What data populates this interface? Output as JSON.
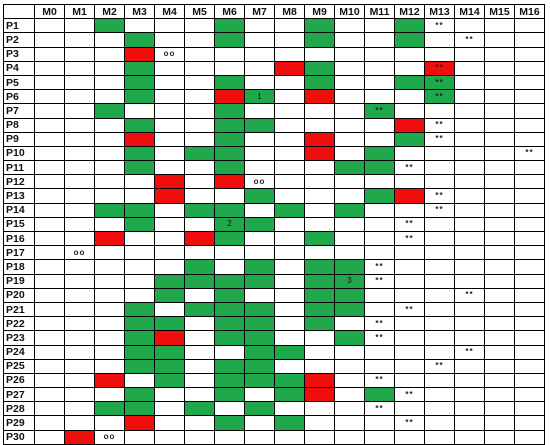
{
  "machines": [
    "M0",
    "M1",
    "M2",
    "M3",
    "M4",
    "M5",
    "M6",
    "M7",
    "M8",
    "M9",
    "M10",
    "M11",
    "M12",
    "M13",
    "M14",
    "M15",
    "M16"
  ],
  "colors": {
    "green": "#1fa84c",
    "red": "#f20d0d",
    "white": "#ffffff"
  },
  "rows": [
    {
      "label": "P1",
      "cells": [
        "",
        "",
        "G",
        "",
        "",
        "",
        "G",
        "",
        "",
        "G",
        "",
        "",
        "G",
        "W:**",
        "",
        "",
        ""
      ]
    },
    {
      "label": "P2",
      "cells": [
        "",
        "",
        "",
        "G",
        "",
        "",
        "G",
        "",
        "",
        "G",
        "",
        "",
        "G",
        "",
        "W:**",
        "",
        ""
      ]
    },
    {
      "label": "P3",
      "cells": [
        "",
        "",
        "",
        "R",
        "W:oo",
        "",
        "",
        "",
        "",
        "",
        "",
        "",
        "",
        "",
        "",
        "",
        ""
      ]
    },
    {
      "label": "P4",
      "cells": [
        "",
        "",
        "",
        "G",
        "",
        "",
        "",
        "",
        "R",
        "G",
        "",
        "",
        "",
        "R:**",
        "",
        "",
        ""
      ]
    },
    {
      "label": "P5",
      "cells": [
        "",
        "",
        "",
        "G",
        "",
        "",
        "G",
        "",
        "",
        "G",
        "",
        "",
        "G",
        "G:**",
        "",
        "",
        ""
      ]
    },
    {
      "label": "P6",
      "cells": [
        "",
        "",
        "",
        "G",
        "",
        "",
        "R",
        "G:1",
        "",
        "R",
        "",
        "",
        "",
        "G:**",
        "",
        "",
        ""
      ]
    },
    {
      "label": "P7",
      "cells": [
        "",
        "",
        "G",
        "",
        "",
        "",
        "G",
        "",
        "",
        "",
        "",
        "G:**",
        "",
        "",
        "",
        "",
        ""
      ]
    },
    {
      "label": "P8",
      "cells": [
        "",
        "",
        "",
        "G",
        "",
        "",
        "G",
        "G",
        "",
        "",
        "",
        "",
        "R",
        "W:**",
        "",
        "",
        ""
      ]
    },
    {
      "label": "P9",
      "cells": [
        "",
        "",
        "",
        "R",
        "",
        "",
        "G",
        "",
        "",
        "R",
        "",
        "",
        "G",
        "W:**",
        "",
        "",
        ""
      ]
    },
    {
      "label": "P10",
      "cells": [
        "",
        "",
        "",
        "G",
        "",
        "G",
        "G",
        "",
        "",
        "R",
        "",
        "G",
        "",
        "",
        "",
        "",
        "W:**"
      ]
    },
    {
      "label": "P11",
      "cells": [
        "",
        "",
        "",
        "G",
        "",
        "",
        "G",
        "",
        "",
        "",
        "G",
        "G",
        "W:**",
        "",
        "",
        "",
        ""
      ]
    },
    {
      "label": "P12",
      "cells": [
        "",
        "",
        "",
        "",
        "R",
        "",
        "R",
        "W:oo",
        "",
        "",
        "",
        "",
        "",
        "",
        "",
        "",
        ""
      ]
    },
    {
      "label": "P13",
      "cells": [
        "",
        "",
        "",
        "",
        "R",
        "",
        "",
        "G",
        "",
        "",
        "",
        "G",
        "R",
        "W:**",
        "",
        "",
        ""
      ]
    },
    {
      "label": "P14",
      "cells": [
        "",
        "",
        "G",
        "G",
        "",
        "G",
        "G",
        "",
        "G",
        "",
        "G",
        "",
        "",
        "W:**",
        "",
        "",
        ""
      ]
    },
    {
      "label": "P15",
      "cells": [
        "",
        "",
        "",
        "G",
        "",
        "",
        "G:2",
        "G",
        "",
        "",
        "",
        "",
        "W:**",
        "",
        "",
        "",
        ""
      ]
    },
    {
      "label": "P16",
      "cells": [
        "",
        "",
        "R",
        "",
        "",
        "R",
        "G",
        "",
        "",
        "G",
        "",
        "",
        "W:**",
        "",
        "",
        "",
        ""
      ]
    },
    {
      "label": "P17",
      "cells": [
        "",
        "W:oo",
        "",
        "",
        "",
        "",
        "",
        "",
        "",
        "",
        "",
        "",
        "",
        "",
        "",
        "",
        ""
      ]
    },
    {
      "label": "P18",
      "cells": [
        "",
        "",
        "",
        "",
        "",
        "G",
        "",
        "G",
        "",
        "G",
        "G",
        "W:**",
        "",
        "",
        "",
        "",
        ""
      ]
    },
    {
      "label": "P19",
      "cells": [
        "",
        "",
        "",
        "",
        "G",
        "G",
        "G",
        "G",
        "",
        "G",
        "G:3",
        "W:**",
        "",
        "",
        "",
        "",
        ""
      ]
    },
    {
      "label": "P20",
      "cells": [
        "",
        "",
        "",
        "",
        "G",
        "",
        "G",
        "",
        "",
        "G",
        "G",
        "",
        "",
        "",
        "W:**",
        "",
        ""
      ]
    },
    {
      "label": "P21",
      "cells": [
        "",
        "",
        "",
        "G",
        "",
        "G",
        "G",
        "G",
        "",
        "G",
        "G",
        "",
        "W:**",
        "",
        "",
        "",
        ""
      ]
    },
    {
      "label": "P22",
      "cells": [
        "",
        "",
        "",
        "G",
        "G",
        "",
        "G",
        "G",
        "",
        "G",
        "",
        "W:**",
        "",
        "",
        "",
        "",
        ""
      ]
    },
    {
      "label": "P23",
      "cells": [
        "",
        "",
        "",
        "G",
        "R",
        "",
        "G",
        "G",
        "",
        "",
        "G",
        "W:**",
        "",
        "",
        "",
        "",
        ""
      ]
    },
    {
      "label": "P24",
      "cells": [
        "",
        "",
        "",
        "G",
        "G",
        "",
        "",
        "G",
        "G",
        "",
        "",
        "",
        "",
        "",
        "W:**",
        "",
        ""
      ]
    },
    {
      "label": "P25",
      "cells": [
        "",
        "",
        "",
        "G",
        "G",
        "",
        "G",
        "G",
        "",
        "",
        "",
        "",
        "",
        "W:**",
        "",
        "",
        ""
      ]
    },
    {
      "label": "P26",
      "cells": [
        "",
        "",
        "R",
        "",
        "G",
        "",
        "G",
        "G",
        "G",
        "R",
        "",
        "W:**",
        "",
        "",
        "",
        "",
        ""
      ]
    },
    {
      "label": "P27",
      "cells": [
        "",
        "",
        "",
        "G",
        "",
        "",
        "G",
        "",
        "G",
        "R",
        "",
        "G",
        "W:**",
        "",
        "",
        "",
        ""
      ]
    },
    {
      "label": "P28",
      "cells": [
        "",
        "",
        "G",
        "G",
        "",
        "G",
        "",
        "G",
        "",
        "",
        "",
        "W:**",
        "",
        "",
        "",
        "",
        ""
      ]
    },
    {
      "label": "P29",
      "cells": [
        "",
        "",
        "",
        "R",
        "",
        "",
        "G",
        "",
        "G",
        "",
        "",
        "",
        "W:**",
        "",
        "",
        "",
        ""
      ]
    },
    {
      "label": "P30",
      "cells": [
        "",
        "R",
        "W:oo",
        "",
        "",
        "",
        "",
        "",
        "",
        "",
        "",
        "",
        "",
        "",
        "",
        "",
        ""
      ]
    }
  ]
}
